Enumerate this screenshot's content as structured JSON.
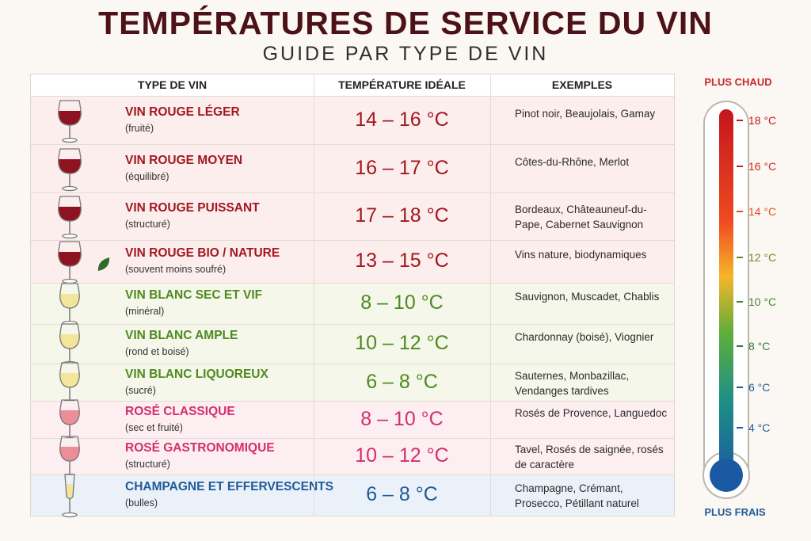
{
  "header": {
    "title": "TEMPÉRATURES DE SERVICE DU VIN",
    "subtitle": "GUIDE PAR TYPE DE VIN"
  },
  "table": {
    "columns": [
      "TYPE DE VIN",
      "TEMPÉRATURE IDÉALE",
      "EXEMPLES"
    ],
    "rows": [
      {
        "name": "VIN ROUGE LÉGER",
        "note": "(fruité)",
        "temperature": "14 – 16 °C",
        "examples": "Pinot noir, Beaujolais, Gamay"
      },
      {
        "name": "VIN ROUGE MOYEN",
        "note": "(équilibré)",
        "temperature": "16 – 17 °C",
        "examples": "Côtes-du-Rhône, Merlot"
      },
      {
        "name": "VIN ROUGE PUISSANT",
        "note": "(structuré)",
        "temperature": "17 – 18 °C",
        "examples": "Bordeaux, Châteauneuf-du-Pape, Cabernet Sauvignon"
      },
      {
        "name": "VIN ROUGE BIO / NATURE",
        "note": "(souvent moins soufré)",
        "temperature": "13 – 15 °C",
        "examples": "Vins nature, biodynamiques"
      },
      {
        "name": "VIN BLANC SEC ET VIF",
        "note": "(minéral)",
        "temperature": "8 – 10 °C",
        "examples": "Sauvignon, Muscadet, Chablis"
      },
      {
        "name": "VIN BLANC AMPLE",
        "note": "(rond et boisé)",
        "temperature": "10 – 12 °C",
        "examples": "Chardonnay (boisé), Viognier"
      },
      {
        "name": "VIN BLANC LIQUOREUX",
        "note": "(sucré)",
        "temperature": "6 – 8 °C",
        "examples": "Sauternes, Monbazillac, Vendanges tardives"
      },
      {
        "name": "ROSÉ CLASSIQUE",
        "note": "(sec et fruité)",
        "temperature": "8 – 10 °C",
        "examples": "Rosés de Provence, Languedoc"
      },
      {
        "name": "ROSÉ GASTRONOMIQUE",
        "note": "(structuré)",
        "temperature": "10 – 12 °C",
        "examples": "Tavel, Rosés de saignée, rosés de caractère"
      },
      {
        "name": "CHAMPAGNE ET EFFERVESCENTS",
        "note": "(bulles)",
        "temperature": "6 – 8 °C",
        "examples": "Champagne, Crémant, Prosecco, Pétillant naturel"
      }
    ]
  },
  "thermometer": {
    "top_label": "PLUS CHAUD",
    "bottom_label": "PLUS FRAIS",
    "ticks": [
      "18 °C",
      "16 °C",
      "14 °C",
      "12 °C",
      "10 °C",
      "8 °C",
      "6 °C",
      "4 °C"
    ]
  }
}
